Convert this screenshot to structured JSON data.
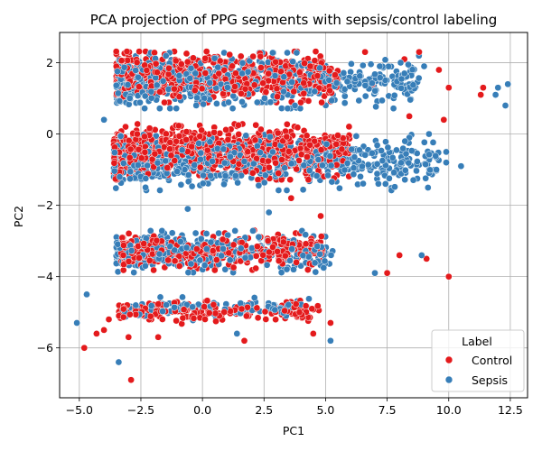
{
  "chart_data": {
    "type": "scatter",
    "title": "PCA projection of PPG segments with sepsis/control labeling",
    "xlabel": "PC1",
    "ylabel": "PC2",
    "xlim": [
      -5.8,
      13.2
    ],
    "ylim": [
      -7.4,
      2.85
    ],
    "x_ticks": [
      -5.0,
      -2.5,
      0.0,
      2.5,
      5.0,
      7.5,
      10.0,
      12.5
    ],
    "x_tick_labels": [
      "−5.0",
      "−2.5",
      "0.0",
      "2.5",
      "5.0",
      "7.5",
      "10.0",
      "12.5"
    ],
    "y_ticks": [
      2,
      0,
      -2,
      -4,
      -6
    ],
    "y_tick_labels": [
      "2",
      "0",
      "−2",
      "−4",
      "−6"
    ],
    "grid": true,
    "legend": {
      "title": "Label",
      "placement": "lower-right",
      "entries": [
        "Control",
        "Sepsis"
      ]
    },
    "series": [
      {
        "name": "Control",
        "color": "#e41a1c",
        "clusters": [
          {
            "x_range": [
              -3.5,
              5.5
            ],
            "y_center": 1.6,
            "y_spread": 0.55,
            "count": 650
          },
          {
            "x_range": [
              -3.6,
              6.0
            ],
            "y_center": -0.5,
            "y_spread": 0.6,
            "count": 800
          },
          {
            "x_range": [
              -3.3,
              5.0
            ],
            "y_center": -3.3,
            "y_spread": 0.4,
            "count": 420
          },
          {
            "x_range": [
              -3.4,
              4.8
            ],
            "y_center": -5.0,
            "y_spread": 0.25,
            "count": 170
          }
        ],
        "sparse_points": [
          [
            -4.3,
            -5.6
          ],
          [
            -4.0,
            -5.5
          ],
          [
            -3.8,
            -5.2
          ],
          [
            -3.0,
            -5.7
          ],
          [
            -2.9,
            -6.9
          ],
          [
            -4.8,
            -6.0
          ],
          [
            -1.8,
            -5.7
          ],
          [
            1.7,
            -5.8
          ],
          [
            4.5,
            -5.6
          ],
          [
            5.2,
            -5.3
          ],
          [
            10.0,
            -4.0
          ],
          [
            7.5,
            -3.9
          ],
          [
            8.0,
            -3.4
          ],
          [
            9.1,
            -3.5
          ],
          [
            3.6,
            -1.8
          ],
          [
            4.8,
            -2.3
          ],
          [
            2.1,
            -2.7
          ],
          [
            6.6,
            2.3
          ],
          [
            8.2,
            2.1
          ],
          [
            8.8,
            2.3
          ],
          [
            9.6,
            1.8
          ],
          [
            10.0,
            1.3
          ],
          [
            11.4,
            1.3
          ],
          [
            9.8,
            0.4
          ],
          [
            11.3,
            1.1
          ],
          [
            6.9,
            1.4
          ],
          [
            8.4,
            0.5
          ]
        ]
      },
      {
        "name": "Sepsis",
        "color": "#377eb8",
        "clusters": [
          {
            "x_range": [
              -3.5,
              8.8
            ],
            "y_center": 1.5,
            "y_spread": 0.6,
            "count": 650
          },
          {
            "x_range": [
              -3.6,
              9.6
            ],
            "y_center": -0.8,
            "y_spread": 0.6,
            "count": 700
          },
          {
            "x_range": [
              -3.5,
              5.3
            ],
            "y_center": -3.3,
            "y_spread": 0.45,
            "count": 380
          },
          {
            "x_range": [
              -3.3,
              4.5
            ],
            "y_center": -4.9,
            "y_spread": 0.25,
            "count": 120
          }
        ],
        "sparse_points": [
          [
            -5.1,
            -5.3
          ],
          [
            -4.7,
            -4.5
          ],
          [
            -3.4,
            -6.4
          ],
          [
            -4.0,
            0.4
          ],
          [
            12.0,
            1.3
          ],
          [
            12.4,
            1.4
          ],
          [
            12.3,
            0.8
          ],
          [
            10.5,
            -0.9
          ],
          [
            9.9,
            -0.5
          ],
          [
            9.5,
            -1.0
          ],
          [
            9.2,
            0.0
          ],
          [
            9.0,
            1.9
          ],
          [
            8.9,
            -3.4
          ],
          [
            7.2,
            1.9
          ],
          [
            8.2,
            1.7
          ],
          [
            11.9,
            1.1
          ],
          [
            7.0,
            -3.9
          ],
          [
            2.7,
            -2.2
          ],
          [
            -0.6,
            -2.1
          ],
          [
            1.4,
            -5.6
          ],
          [
            5.2,
            -5.8
          ],
          [
            3.7,
            -3.8
          ],
          [
            9.9,
            -0.8
          ]
        ]
      }
    ]
  }
}
